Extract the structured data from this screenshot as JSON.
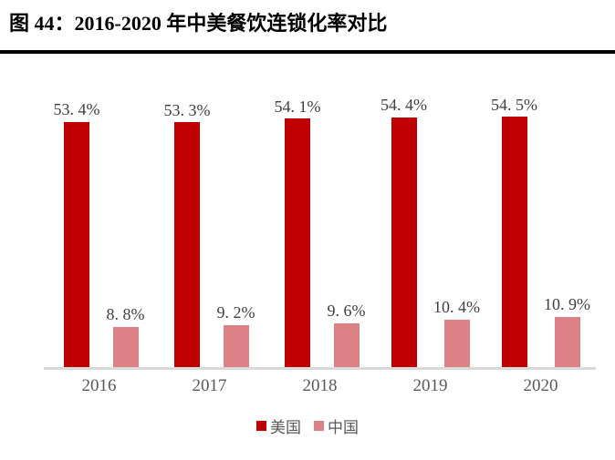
{
  "header": {
    "title": "图 44：2016-2020 年中美餐饮连锁化率对比"
  },
  "chart_data": {
    "type": "bar",
    "title": "2016-2020 年中美餐饮连锁化率对比",
    "categories": [
      "2016",
      "2017",
      "2018",
      "2019",
      "2020"
    ],
    "series": [
      {
        "name": "美国",
        "values": [
          53.4,
          53.3,
          54.1,
          54.4,
          54.5
        ],
        "labels": [
          "53. 4%",
          "53. 3%",
          "54. 1%",
          "54. 4%",
          "54. 5%"
        ],
        "color": "#C00000"
      },
      {
        "name": "中国",
        "values": [
          8.8,
          9.2,
          9.6,
          10.4,
          10.9
        ],
        "labels": [
          "8. 8%",
          "9. 2%",
          "9. 6%",
          "10. 4%",
          "10. 9%"
        ],
        "color": "#DC8286"
      }
    ],
    "unit": "%",
    "ylim": [
      0,
      80
    ],
    "grid": false,
    "legend_position": "bottom",
    "colors": {
      "axis_line": "#D9D9D9",
      "value_label": "#404040",
      "tick_label": "#595959",
      "title_text": "#000000",
      "title_rule": "#000000"
    }
  }
}
